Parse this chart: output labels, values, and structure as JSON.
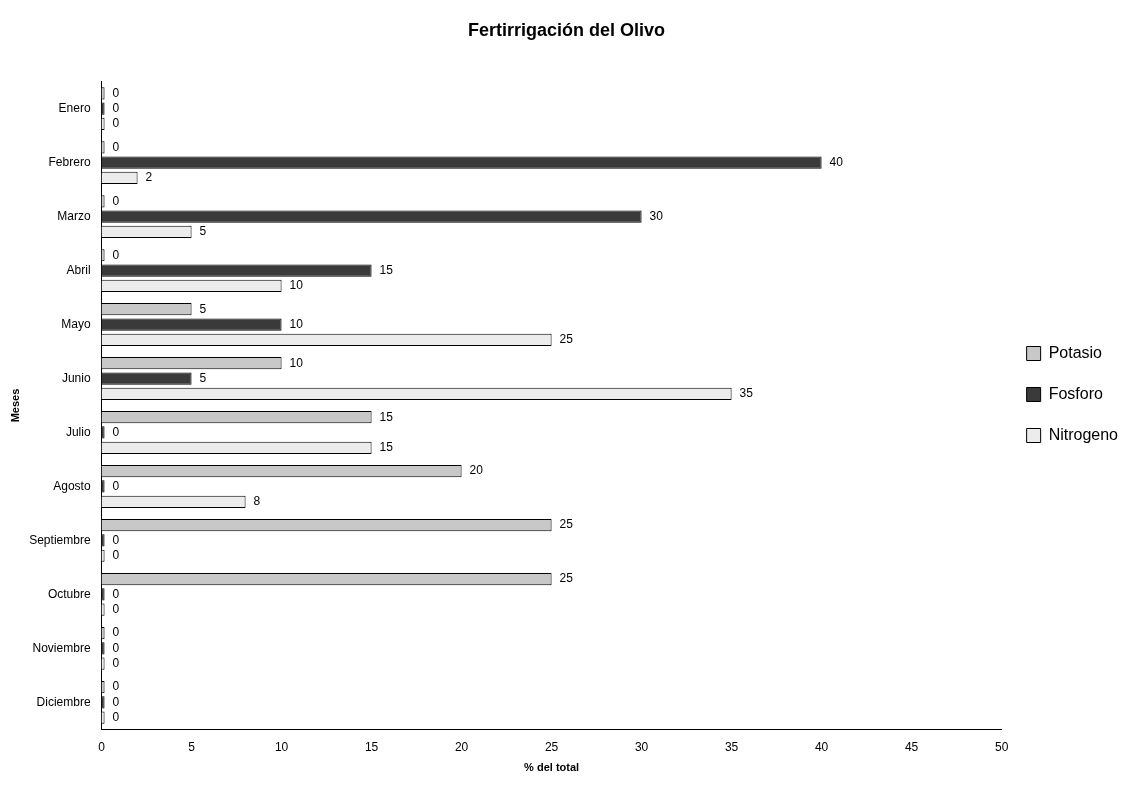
{
  "chart_data": {
    "type": "bar",
    "orientation": "horizontal",
    "title": "Fertirrigación del Olivo",
    "xlabel": "% del total",
    "ylabel": "Meses",
    "categories": [
      "Enero",
      "Febrero",
      "Marzo",
      "Abril",
      "Mayo",
      "Junio",
      "Julio",
      "Agosto",
      "Septiembre",
      "Octubre",
      "Noviembre",
      "Diciembre"
    ],
    "series": [
      {
        "name": "Potasio",
        "color": "#c8c8c8",
        "values": [
          0,
          0,
          0,
          0,
          5,
          10,
          15,
          20,
          25,
          25,
          0,
          0
        ]
      },
      {
        "name": "Fosforo",
        "color": "#3a3a3a",
        "values": [
          0,
          40,
          30,
          15,
          10,
          5,
          0,
          0,
          0,
          0,
          0,
          0
        ]
      },
      {
        "name": "Nitrogeno",
        "color": "#ececec",
        "values": [
          0,
          2,
          5,
          10,
          25,
          35,
          15,
          8,
          0,
          0,
          0,
          0
        ]
      }
    ],
    "xlim": [
      0,
      50
    ],
    "xticks": [
      0,
      5,
      10,
      15,
      20,
      25,
      30,
      35,
      40,
      45,
      50
    ],
    "data_labels": true,
    "legend": "right",
    "grid": false
  }
}
